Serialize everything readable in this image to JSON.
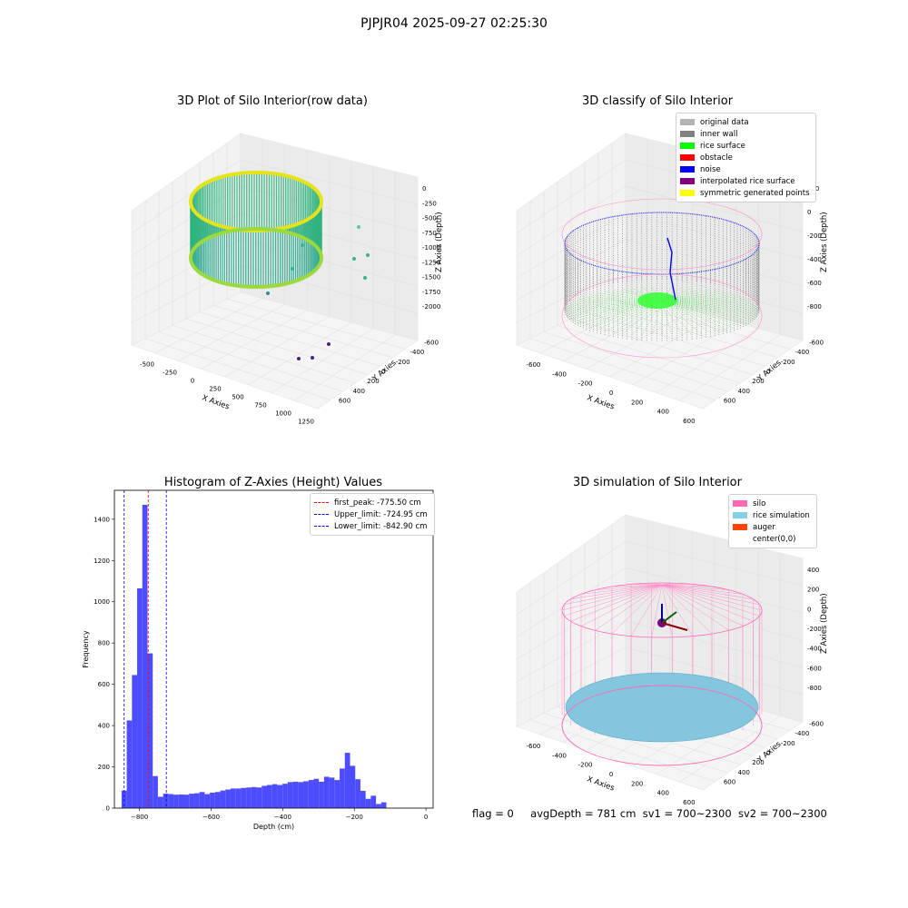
{
  "figure": {
    "suptitle": "PJPJR04 2025-09-27 02:25:30"
  },
  "chart_data": [
    {
      "type": "scatter",
      "title": "3D Plot of Silo Interior(row data)",
      "xlabel": "X Axies",
      "ylabel": "Y Axies",
      "zlabel": "Z Axies (Depth)",
      "x_ticks": [
        "-500",
        "-250",
        "0",
        "250",
        "500",
        "750",
        "1000",
        "1250"
      ],
      "y_ticks": [
        "600",
        "400",
        "200",
        "0",
        "-200",
        "-400",
        "-600"
      ],
      "z_ticks": [
        "0",
        "-250",
        "-500",
        "-750",
        "-1000",
        "-1250",
        "-1500",
        "-1750",
        "-2000"
      ],
      "colormap": [
        "#440154",
        "#21918c",
        "#fde725"
      ]
    },
    {
      "type": "scatter",
      "title": "3D classify of Silo Interior",
      "xlabel": "X Axies",
      "ylabel": "Y Axies",
      "zlabel": "Z Axies (Depth)",
      "x_ticks": [
        "-600",
        "-400",
        "-200",
        "0",
        "200",
        "400",
        "600"
      ],
      "y_ticks": [
        "600",
        "400",
        "200",
        "0",
        "-200",
        "-400",
        "-600"
      ],
      "z_ticks": [
        "200",
        "0",
        "-200",
        "-400",
        "-600",
        "-800"
      ],
      "legend": [
        {
          "label": "original data",
          "color": "#b3b3b3"
        },
        {
          "label": "inner wall",
          "color": "#808080"
        },
        {
          "label": "rice surface",
          "color": "#00ff00"
        },
        {
          "label": "obstacle",
          "color": "#ff0000"
        },
        {
          "label": "noise",
          "color": "#0000ff"
        },
        {
          "label": "interpolated rice surface",
          "color": "#800080"
        },
        {
          "label": "symmetric generated points",
          "color": "#ffff00"
        }
      ]
    },
    {
      "type": "bar",
      "title": "Histogram of Z-Axies (Height) Values",
      "xlabel": "Depth (cm)",
      "ylabel": "Frequency",
      "xlim": [
        -870,
        20
      ],
      "ylim": [
        0,
        1540
      ],
      "x_ticks": [
        -800,
        -600,
        -400,
        -200,
        0
      ],
      "x_tick_labels": [
        "−800",
        "−600",
        "−400",
        "−200",
        "0"
      ],
      "y_ticks": [
        0,
        200,
        400,
        600,
        800,
        1000,
        1200,
        1400
      ],
      "bar_color": "#4d4dff",
      "bin_width": 14.5,
      "bins_start": -850,
      "values": [
        85,
        425,
        645,
        1065,
        1470,
        750,
        155,
        55,
        70,
        68,
        65,
        66,
        65,
        70,
        72,
        78,
        68,
        75,
        78,
        85,
        90,
        95,
        95,
        98,
        100,
        102,
        100,
        108,
        112,
        116,
        112,
        118,
        126,
        128,
        126,
        130,
        136,
        142,
        128,
        152,
        148,
        136,
        192,
        268,
        205,
        140,
        84,
        45,
        60,
        20,
        28
      ],
      "vlines": [
        {
          "x": -775.5,
          "color": "#ff0000"
        },
        {
          "x": -724.95,
          "color": "#0000ff"
        },
        {
          "x": -842.9,
          "color": "#0000ff"
        }
      ],
      "legend": [
        {
          "label": "first_peak: -775.50 cm",
          "color": "#ff0000"
        },
        {
          "label": "Upper_limit: -724.95 cm",
          "color": "#0000ff"
        },
        {
          "label": "Lower_limit: -842.90 cm",
          "color": "#0000ff"
        }
      ]
    },
    {
      "type": "scatter",
      "title": "3D simulation of Silo Interior",
      "xlabel": "X Axies",
      "ylabel": "Y Axies",
      "zlabel": "Z Axies (Depth)",
      "x_ticks": [
        "-600",
        "-400",
        "-200",
        "0",
        "200",
        "400",
        "600"
      ],
      "y_ticks": [
        "600",
        "400",
        "200",
        "0",
        "-200",
        "-400",
        "-600"
      ],
      "z_ticks": [
        "400",
        "200",
        "0",
        "-200",
        "-400",
        "-600",
        "-800"
      ],
      "legend": [
        {
          "label": "silo",
          "color": "#ff69b4"
        },
        {
          "label": "rice simulation",
          "color": "#87ceeb"
        },
        {
          "label": "auger",
          "color": "#ff4500"
        },
        {
          "label": "center(0,0)",
          "color": "#ffffff"
        }
      ]
    }
  ],
  "status": {
    "flag": "flag = 0",
    "avg_depth": "avgDepth = 781 cm",
    "sv1": "sv1 = 700~2300",
    "sv2": "sv2 = 700~2300"
  }
}
